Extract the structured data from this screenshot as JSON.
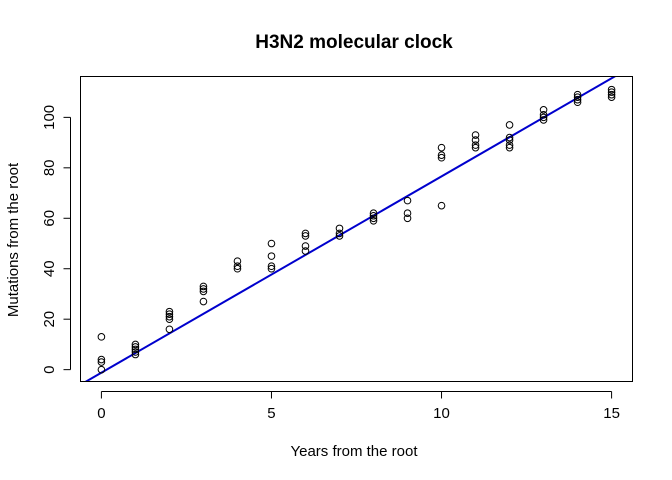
{
  "chart_data": {
    "type": "scatter",
    "title": "H3N2 molecular clock",
    "xlabel": "Years from the root",
    "ylabel": "Mutations from the root",
    "xlim": [
      -0.6,
      15.6
    ],
    "ylim": [
      -4.5,
      116
    ],
    "xticks": [
      0,
      5,
      10,
      15
    ],
    "yticks": [
      0,
      20,
      40,
      60,
      80,
      100
    ],
    "grid": false,
    "legend": "none",
    "line_color": "#0000cd",
    "point_color": "#000000",
    "fit_line": {
      "intercept": -1.2,
      "slope": 7.78
    },
    "points": [
      {
        "x": 0,
        "y": 0
      },
      {
        "x": 0,
        "y": 3
      },
      {
        "x": 0,
        "y": 4
      },
      {
        "x": 0,
        "y": 13
      },
      {
        "x": 1,
        "y": 6
      },
      {
        "x": 1,
        "y": 7
      },
      {
        "x": 1,
        "y": 8
      },
      {
        "x": 1,
        "y": 9
      },
      {
        "x": 1,
        "y": 10
      },
      {
        "x": 2,
        "y": 16
      },
      {
        "x": 2,
        "y": 20
      },
      {
        "x": 2,
        "y": 21
      },
      {
        "x": 2,
        "y": 22
      },
      {
        "x": 2,
        "y": 23
      },
      {
        "x": 3,
        "y": 27
      },
      {
        "x": 3,
        "y": 31
      },
      {
        "x": 3,
        "y": 32
      },
      {
        "x": 3,
        "y": 33
      },
      {
        "x": 4,
        "y": 40
      },
      {
        "x": 4,
        "y": 41
      },
      {
        "x": 4,
        "y": 43
      },
      {
        "x": 5,
        "y": 40
      },
      {
        "x": 5,
        "y": 41
      },
      {
        "x": 5,
        "y": 45
      },
      {
        "x": 5,
        "y": 50
      },
      {
        "x": 6,
        "y": 47
      },
      {
        "x": 6,
        "y": 49
      },
      {
        "x": 6,
        "y": 53
      },
      {
        "x": 6,
        "y": 54
      },
      {
        "x": 7,
        "y": 53
      },
      {
        "x": 7,
        "y": 54
      },
      {
        "x": 7,
        "y": 56
      },
      {
        "x": 8,
        "y": 59
      },
      {
        "x": 8,
        "y": 60
      },
      {
        "x": 8,
        "y": 61
      },
      {
        "x": 8,
        "y": 62
      },
      {
        "x": 9,
        "y": 60
      },
      {
        "x": 9,
        "y": 62
      },
      {
        "x": 9,
        "y": 67
      },
      {
        "x": 10,
        "y": 65
      },
      {
        "x": 10,
        "y": 84
      },
      {
        "x": 10,
        "y": 85
      },
      {
        "x": 10,
        "y": 88
      },
      {
        "x": 11,
        "y": 88
      },
      {
        "x": 11,
        "y": 89
      },
      {
        "x": 11,
        "y": 91
      },
      {
        "x": 11,
        "y": 93
      },
      {
        "x": 12,
        "y": 88
      },
      {
        "x": 12,
        "y": 89
      },
      {
        "x": 12,
        "y": 91
      },
      {
        "x": 12,
        "y": 92
      },
      {
        "x": 12,
        "y": 97
      },
      {
        "x": 13,
        "y": 99
      },
      {
        "x": 13,
        "y": 100
      },
      {
        "x": 13,
        "y": 101
      },
      {
        "x": 13,
        "y": 103
      },
      {
        "x": 14,
        "y": 106
      },
      {
        "x": 14,
        "y": 107
      },
      {
        "x": 14,
        "y": 108
      },
      {
        "x": 14,
        "y": 109
      },
      {
        "x": 15,
        "y": 108
      },
      {
        "x": 15,
        "y": 109
      },
      {
        "x": 15,
        "y": 110
      },
      {
        "x": 15,
        "y": 111
      }
    ]
  }
}
